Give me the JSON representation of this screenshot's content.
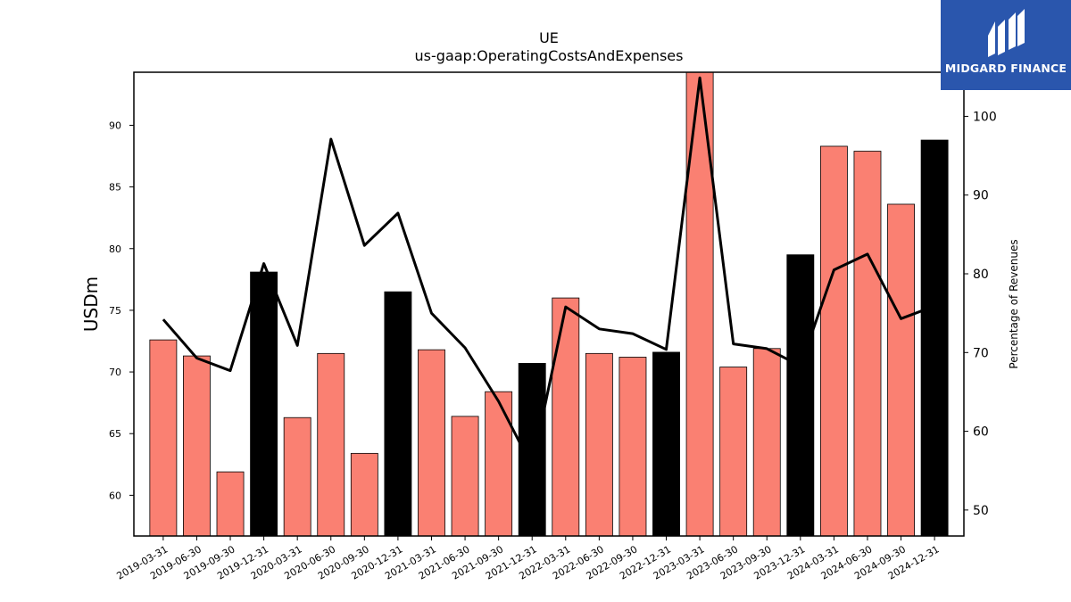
{
  "brand": {
    "name": "MIDGARD FINANCE",
    "color": "#2a56ad",
    "icon": "midgard-logo-icon"
  },
  "chart_data": {
    "type": "bar",
    "title": "UE",
    "subtitle": "us-gaap:OperatingCostsAndExpenses",
    "ylabel": "USDm",
    "y2label": "Percentage of Revenues",
    "ylim": [
      56.7,
      94.3
    ],
    "y2lim": [
      46.7,
      105.6
    ],
    "yticks": [
      60,
      65,
      70,
      75,
      80,
      85,
      90
    ],
    "y2ticks": [
      50,
      60,
      70,
      80,
      90,
      100
    ],
    "grid": false,
    "categories": [
      "2019-03-31",
      "2019-06-30",
      "2019-09-30",
      "2019-12-31",
      "2020-03-31",
      "2020-06-30",
      "2020-09-30",
      "2020-12-31",
      "2021-03-31",
      "2021-06-30",
      "2021-09-30",
      "2021-12-31",
      "2022-03-31",
      "2022-06-30",
      "2022-09-30",
      "2022-12-31",
      "2023-03-31",
      "2023-06-30",
      "2023-09-30",
      "2023-12-31",
      "2024-03-31",
      "2024-06-30",
      "2024-09-30",
      "2024-12-31"
    ],
    "series": [
      {
        "kind": "bar",
        "axis": "left",
        "values": [
          72.6,
          71.3,
          61.9,
          78.1,
          66.3,
          71.5,
          63.4,
          76.5,
          71.8,
          66.4,
          68.4,
          70.7,
          76.0,
          71.5,
          71.2,
          71.6,
          94.3,
          70.4,
          71.9,
          79.5,
          88.3,
          87.9,
          83.6,
          88.8
        ],
        "colors": [
          "#fa8072",
          "#fa8072",
          "#fa8072",
          "#000000",
          "#fa8072",
          "#fa8072",
          "#fa8072",
          "#000000",
          "#fa8072",
          "#fa8072",
          "#fa8072",
          "#000000",
          "#fa8072",
          "#fa8072",
          "#fa8072",
          "#000000",
          "#fa8072",
          "#fa8072",
          "#fa8072",
          "#000000",
          "#fa8072",
          "#fa8072",
          "#fa8072",
          "#000000"
        ]
      },
      {
        "kind": "line",
        "axis": "right",
        "color": "#000000",
        "values": [
          74.2,
          69.3,
          67.7,
          81.3,
          70.9,
          97.1,
          83.6,
          87.7,
          75.0,
          70.6,
          63.8,
          55.5,
          75.8,
          73.0,
          72.4,
          70.4,
          104.9,
          71.1,
          70.5,
          68.3,
          80.5,
          82.5,
          74.3,
          75.9
        ]
      }
    ]
  }
}
